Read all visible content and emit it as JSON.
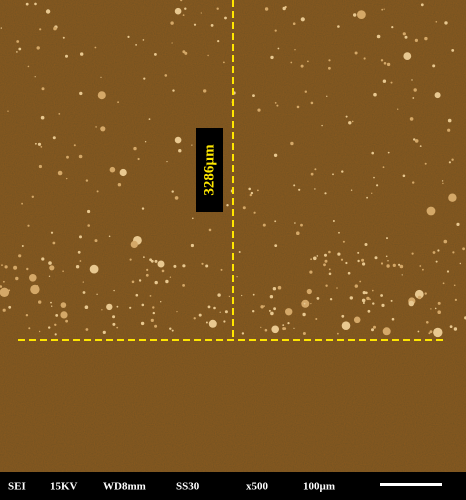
{
  "image": {
    "annotation": "3286µm"
  },
  "footer": {
    "items": [
      "SEI",
      "15KV",
      "WD8mm",
      "SS30",
      "x500",
      "100µm"
    ]
  }
}
